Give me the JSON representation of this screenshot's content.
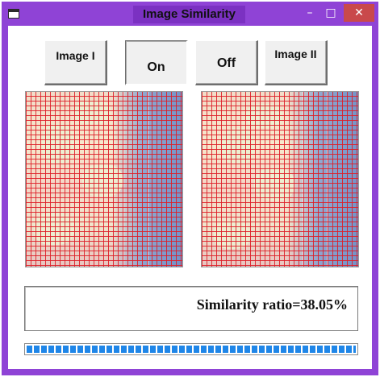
{
  "window": {
    "title": "Image Similarity",
    "minimize_glyph": "–",
    "maximize_glyph": "□",
    "close_glyph": "✕",
    "accent_color": "#8f43d6",
    "close_color": "#c9494b"
  },
  "buttons": {
    "image_one": "Image I",
    "on": "On",
    "off": "Off",
    "image_two": "Image II"
  },
  "images": {
    "left_icon": "image-grid-icon",
    "right_icon": "image-grid-icon"
  },
  "result": {
    "text": "Similarity ratio=38.05%"
  },
  "progress": {
    "percent": 100,
    "color": "#1f86e8"
  }
}
